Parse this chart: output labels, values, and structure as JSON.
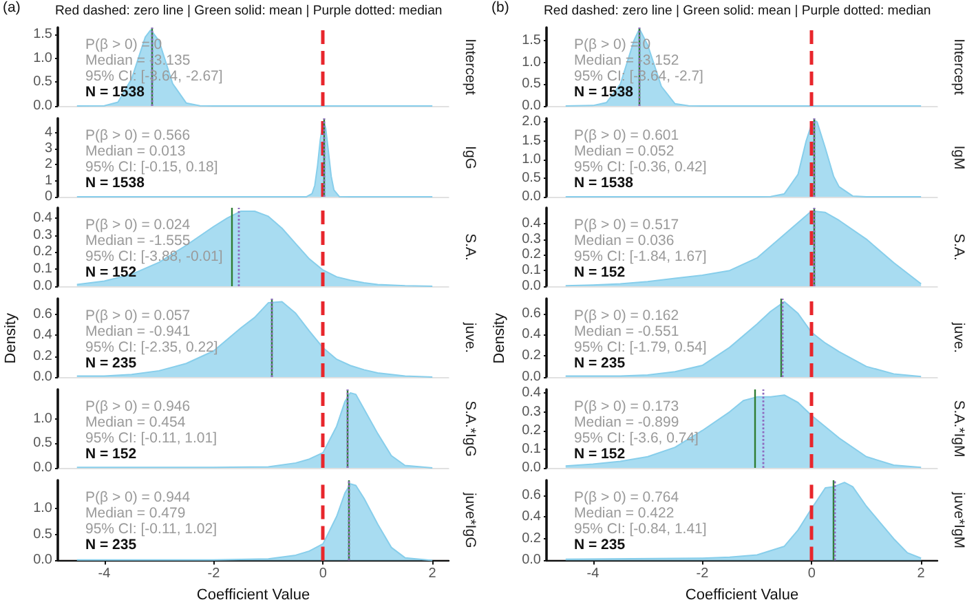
{
  "chart_data": [
    {
      "type": "area",
      "title": "Red dashed: zero line | Green solid: mean | Purple dotted: median",
      "subtitle": "(a)",
      "y2label": "Intercept",
      "annotations": [
        "P(β > 0) = 0",
        "Median = -3.135",
        "95% CI: [-3.64, -2.67]",
        "N = 1538"
      ],
      "x": [
        -4.5,
        -4,
        -3.75,
        -3.5,
        -3.25,
        -3.15,
        -3,
        -2.75,
        -2.5,
        -2.25,
        -2,
        2
      ],
      "series": [
        {
          "color": "#87ceeb",
          "values": [
            0,
            0.004,
            0.08,
            0.57,
            1.45,
            1.6,
            1.37,
            0.47,
            0.06,
            0.005,
            0,
            0
          ]
        }
      ],
      "xlim": [
        -4.85,
        2.3
      ],
      "xticks": [
        -4,
        -2,
        0,
        2
      ],
      "ylim": [
        0,
        1.65
      ],
      "yticks": [
        {
          "value": 0,
          "label": "0.0"
        },
        {
          "value": 0.5,
          "label": "0.5"
        },
        {
          "value": 1,
          "label": "1.0"
        },
        {
          "value": 1.5,
          "label": "1.5"
        }
      ],
      "tick_labels": "y",
      "ref_lines": [
        {
          "axis": "x",
          "value": 0,
          "color": "#e8262c",
          "line_style": "dashed"
        },
        {
          "axis": "x",
          "value": -3.14,
          "color": "#2e7d32",
          "line_style": "solid"
        },
        {
          "axis": "x",
          "value": -3.135,
          "color": "#8e6bbf",
          "line_style": "dotted"
        }
      ]
    },
    {
      "type": "area",
      "y2label": "IgG",
      "annotations": [
        "P(β > 0) = 0.566",
        "Median = 0.013",
        "95% CI: [-0.15, 0.18]",
        "N = 1538"
      ],
      "x": [
        -4.5,
        -0.5,
        -0.3,
        -0.2,
        -0.15,
        -0.1,
        -0.05,
        0,
        0.013,
        0.05,
        0.1,
        0.15,
        0.2,
        0.3,
        0.5,
        2
      ],
      "series": [
        {
          "color": "#87ceeb",
          "values": [
            0,
            0,
            0.005,
            0.2,
            0.71,
            1.94,
            3.55,
            4.65,
            4.7,
            4.26,
            2.79,
            1.28,
            0.42,
            0.01,
            0,
            0
          ]
        }
      ],
      "xlim": [
        -4.85,
        2.3
      ],
      "xticks": [
        -4,
        -2,
        0,
        2
      ],
      "ylim": [
        0,
        4.9
      ],
      "yticks": [
        0,
        1,
        2,
        3,
        4
      ],
      "tick_labels": "y",
      "ref_lines": [
        {
          "axis": "x",
          "value": 0,
          "color": "#e8262c",
          "line_style": "dashed"
        },
        {
          "axis": "x",
          "value": 0.01,
          "color": "#2e7d32",
          "line_style": "solid"
        },
        {
          "axis": "x",
          "value": 0.013,
          "color": "#8e6bbf",
          "line_style": "dotted"
        }
      ]
    },
    {
      "type": "area",
      "y2label": "S.A.",
      "annotations": [
        "P(β > 0) = 0.024",
        "Median = -1.555",
        "95% CI: [-3.88, -0.01]",
        "N = 152"
      ],
      "x": [
        -4.5,
        -4,
        -3.5,
        -3,
        -2.5,
        -2,
        -1.75,
        -1.5,
        -1.25,
        -1,
        -0.75,
        -0.5,
        -0.25,
        0,
        0.25,
        0.5,
        0.75,
        1,
        1.5,
        2
      ],
      "series": [
        {
          "color": "#87ceeb",
          "values": [
            0.01,
            0.03,
            0.07,
            0.14,
            0.24,
            0.35,
            0.4,
            0.44,
            0.44,
            0.41,
            0.34,
            0.25,
            0.16,
            0.095,
            0.055,
            0.035,
            0.02,
            0.01,
            0.003,
            0
          ]
        }
      ],
      "xlim": [
        -4.85,
        2.3
      ],
      "xticks": [
        -4,
        -2,
        0,
        2
      ],
      "ylim": [
        0,
        0.46
      ],
      "yticks": [
        {
          "value": 0,
          "label": "0.0"
        },
        {
          "value": 0.1,
          "label": "0.1"
        },
        {
          "value": 0.2,
          "label": "0.2"
        },
        {
          "value": 0.3,
          "label": "0.3"
        },
        {
          "value": 0.4,
          "label": "0.4"
        }
      ],
      "tick_labels": "y",
      "ref_lines": [
        {
          "axis": "x",
          "value": 0,
          "color": "#e8262c",
          "line_style": "dashed"
        },
        {
          "axis": "x",
          "value": -1.66,
          "color": "#2e7d32",
          "line_style": "solid"
        },
        {
          "axis": "x",
          "value": -1.555,
          "color": "#8e6bbf",
          "line_style": "dotted"
        }
      ]
    },
    {
      "type": "area",
      "ylabel": "Density",
      "y2label": "juve.",
      "annotations": [
        "P(β > 0) = 0.057",
        "Median = -0.941",
        "95% CI: [-2.35, 0.22]",
        "N = 235"
      ],
      "x": [
        -4.5,
        -4,
        -3.5,
        -3,
        -2.5,
        -2,
        -1.5,
        -1.25,
        -1,
        -0.75,
        -0.5,
        -0.25,
        0,
        0.25,
        0.5,
        0.75,
        1,
        1.5,
        2
      ],
      "series": [
        {
          "color": "#87ceeb",
          "values": [
            0.01,
            0.01,
            0.025,
            0.06,
            0.13,
            0.25,
            0.47,
            0.57,
            0.71,
            0.72,
            0.61,
            0.44,
            0.28,
            0.17,
            0.11,
            0.07,
            0.04,
            0.01,
            0
          ]
        }
      ],
      "xlim": [
        -4.85,
        2.3
      ],
      "xticks": [
        -4,
        -2,
        0,
        2
      ],
      "ylim": [
        0,
        0.75
      ],
      "yticks": [
        {
          "value": 0,
          "label": "0.0"
        },
        {
          "value": 0.2,
          "label": "0.2"
        },
        {
          "value": 0.4,
          "label": "0.4"
        },
        {
          "value": 0.6,
          "label": "0.6"
        }
      ],
      "tick_labels": "y",
      "ref_lines": [
        {
          "axis": "x",
          "value": 0,
          "color": "#e8262c",
          "line_style": "dashed"
        },
        {
          "axis": "x",
          "value": -0.95,
          "color": "#2e7d32",
          "line_style": "solid"
        },
        {
          "axis": "x",
          "value": -0.941,
          "color": "#8e6bbf",
          "line_style": "dotted"
        }
      ]
    },
    {
      "type": "area",
      "y2label": "S.A.*IgG",
      "annotations": [
        "P(β > 0) = 0.946",
        "Median = 0.454",
        "95% CI: [-0.11, 1.01]",
        "N = 152"
      ],
      "x": [
        -4.5,
        -2,
        -1,
        -0.5,
        -0.25,
        0,
        0.25,
        0.4,
        0.5,
        0.6,
        0.75,
        1,
        1.25,
        1.5,
        2
      ],
      "series": [
        {
          "color": "#87ceeb",
          "values": [
            0.01,
            0.01,
            0.02,
            0.1,
            0.18,
            0.31,
            0.85,
            1.35,
            1.53,
            1.5,
            1.2,
            0.7,
            0.25,
            0.05,
            0
          ]
        }
      ],
      "xlim": [
        -4.85,
        2.3
      ],
      "xticks": [
        -4,
        -2,
        0,
        2
      ],
      "ylim": [
        0,
        1.6
      ],
      "yticks": [
        {
          "value": 0,
          "label": "0.0"
        },
        {
          "value": 0.5,
          "label": "0.5"
        },
        {
          "value": 1,
          "label": "1.0"
        }
      ],
      "tick_labels": "y",
      "ref_lines": [
        {
          "axis": "x",
          "value": 0,
          "color": "#e8262c",
          "line_style": "dashed"
        },
        {
          "axis": "x",
          "value": 0.45,
          "color": "#2e7d32",
          "line_style": "solid"
        },
        {
          "axis": "x",
          "value": 0.454,
          "color": "#8e6bbf",
          "line_style": "dotted"
        }
      ]
    },
    {
      "type": "area",
      "xlabel": "Coefficient Value",
      "y2label": "juve*IgG",
      "annotations": [
        "P(β > 0) = 0.944",
        "Median = 0.479",
        "95% CI: [-0.11, 1.02]",
        "N = 235"
      ],
      "x": [
        -4.5,
        -2,
        -1,
        -0.5,
        -0.25,
        0,
        0.25,
        0.4,
        0.5,
        0.6,
        0.75,
        1,
        1.25,
        1.5,
        2
      ],
      "series": [
        {
          "color": "#87ceeb",
          "values": [
            0.01,
            0.01,
            0.03,
            0.1,
            0.18,
            0.32,
            0.85,
            1.3,
            1.48,
            1.45,
            1.2,
            0.7,
            0.25,
            0.05,
            0
          ]
        }
      ],
      "xlim": [
        -4.85,
        2.3
      ],
      "xticks": [
        -4,
        -2,
        0,
        2
      ],
      "ylim": [
        0,
        1.55
      ],
      "yticks": [
        {
          "value": 0,
          "label": "0.0"
        },
        {
          "value": 0.5,
          "label": "0.5"
        },
        {
          "value": 1,
          "label": "1.0"
        }
      ],
      "ref_lines": [
        {
          "axis": "x",
          "value": 0,
          "color": "#e8262c",
          "line_style": "dashed"
        },
        {
          "axis": "x",
          "value": 0.48,
          "color": "#2e7d32",
          "line_style": "solid"
        },
        {
          "axis": "x",
          "value": 0.479,
          "color": "#8e6bbf",
          "line_style": "dotted"
        }
      ]
    },
    {
      "type": "area",
      "title": "Red dashed: zero line | Green solid: mean | Purple dotted: median",
      "subtitle": "(b)",
      "y2label": "Intercept",
      "annotations": [
        "P(β > 0) = 0",
        "Median = -3.152",
        "95% CI: [-3.64, -2.7]",
        "N = 1538"
      ],
      "x": [
        -4.5,
        -4,
        -3.75,
        -3.5,
        -3.25,
        -3.15,
        -3,
        -2.75,
        -2.5,
        -2.25,
        -2,
        2
      ],
      "series": [
        {
          "color": "#87ceeb",
          "values": [
            0,
            0.01,
            0.08,
            0.5,
            1.5,
            1.77,
            1.4,
            0.45,
            0.05,
            0.005,
            0,
            0
          ]
        }
      ],
      "xlim": [
        -4.85,
        2.3
      ],
      "xticks": [
        -4,
        -2,
        0,
        2
      ],
      "ylim": [
        0,
        1.8
      ],
      "yticks": [
        {
          "value": 0,
          "label": "0.0"
        },
        {
          "value": 0.5,
          "label": "0.5"
        },
        {
          "value": 1,
          "label": "1.0"
        },
        {
          "value": 1.5,
          "label": "1.5"
        }
      ],
      "tick_labels": "y",
      "ref_lines": [
        {
          "axis": "x",
          "value": 0,
          "color": "#e8262c",
          "line_style": "dashed"
        },
        {
          "axis": "x",
          "value": -3.15,
          "color": "#2e7d32",
          "line_style": "solid"
        },
        {
          "axis": "x",
          "value": -3.152,
          "color": "#8e6bbf",
          "line_style": "dotted"
        }
      ]
    },
    {
      "type": "area",
      "y2label": "IgM",
      "annotations": [
        "P(β > 0) = 0.601",
        "Median = 0.052",
        "95% CI: [-0.36, 0.42]",
        "N = 1538"
      ],
      "x": [
        -4.5,
        -1,
        -0.75,
        -0.5,
        -0.25,
        -0.1,
        0,
        0.05,
        0.1,
        0.25,
        0.4,
        0.5,
        0.75,
        1,
        2
      ],
      "series": [
        {
          "color": "#87ceeb",
          "values": [
            0,
            0,
            0.005,
            0.08,
            0.6,
            1.5,
            1.95,
            2.05,
            2,
            1.3,
            0.55,
            0.27,
            0.02,
            0,
            0
          ]
        }
      ],
      "xlim": [
        -4.85,
        2.3
      ],
      "xticks": [
        -4,
        -2,
        0,
        2
      ],
      "ylim": [
        0,
        2.1
      ],
      "yticks": [
        {
          "value": 0,
          "label": "0.0"
        },
        {
          "value": 0.5,
          "label": "0.5"
        },
        {
          "value": 1,
          "label": "1.0"
        },
        {
          "value": 1.5,
          "label": "1.5"
        },
        {
          "value": 2,
          "label": "2.0"
        }
      ],
      "tick_labels": "y",
      "ref_lines": [
        {
          "axis": "x",
          "value": 0,
          "color": "#e8262c",
          "line_style": "dashed"
        },
        {
          "axis": "x",
          "value": 0.05,
          "color": "#2e7d32",
          "line_style": "solid"
        },
        {
          "axis": "x",
          "value": 0.052,
          "color": "#8e6bbf",
          "line_style": "dotted"
        }
      ]
    },
    {
      "type": "area",
      "y2label": "S.A.",
      "annotations": [
        "P(β > 0) = 0.517",
        "Median = 0.036",
        "95% CI: [-1.84, 1.67]",
        "N = 152"
      ],
      "x": [
        -4.5,
        -4,
        -3.5,
        -3,
        -2.5,
        -2,
        -1.5,
        -1,
        -0.5,
        0,
        0.25,
        0.5,
        1,
        1.5,
        2
      ],
      "series": [
        {
          "color": "#87ceeb",
          "values": [
            0.003,
            0.008,
            0.015,
            0.03,
            0.05,
            0.07,
            0.1,
            0.18,
            0.33,
            0.48,
            0.47,
            0.42,
            0.3,
            0.15,
            0.015
          ]
        }
      ],
      "xlim": [
        -4.85,
        2.3
      ],
      "xticks": [
        -4,
        -2,
        0,
        2
      ],
      "ylim": [
        0,
        0.5
      ],
      "yticks": [
        {
          "value": 0,
          "label": "0.0"
        },
        {
          "value": 0.1,
          "label": "0.1"
        },
        {
          "value": 0.2,
          "label": "0.2"
        },
        {
          "value": 0.3,
          "label": "0.3"
        },
        {
          "value": 0.4,
          "label": "0.4"
        }
      ],
      "tick_labels": "y",
      "ref_lines": [
        {
          "axis": "x",
          "value": 0,
          "color": "#e8262c",
          "line_style": "dashed"
        },
        {
          "axis": "x",
          "value": 0.03,
          "color": "#2e7d32",
          "line_style": "solid"
        },
        {
          "axis": "x",
          "value": 0.036,
          "color": "#8e6bbf",
          "line_style": "dotted"
        }
      ]
    },
    {
      "type": "area",
      "ylabel": "Density",
      "y2label": "juve.",
      "annotations": [
        "P(β > 0) = 0.162",
        "Median = -0.551",
        "95% CI: [-1.79, 0.54]",
        "N = 235"
      ],
      "x": [
        -4.5,
        -4,
        -3.5,
        -3,
        -2.5,
        -2,
        -1.5,
        -1,
        -0.75,
        -0.5,
        -0.25,
        0,
        0.25,
        0.5,
        1,
        1.5,
        2
      ],
      "series": [
        {
          "color": "#87ceeb",
          "values": [
            0.01,
            0.01,
            0.01,
            0.02,
            0.05,
            0.11,
            0.28,
            0.5,
            0.62,
            0.71,
            0.6,
            0.42,
            0.32,
            0.24,
            0.1,
            0.03,
            0.005
          ]
        }
      ],
      "xlim": [
        -4.85,
        2.3
      ],
      "xticks": [
        -4,
        -2,
        0,
        2
      ],
      "ylim": [
        0,
        0.74
      ],
      "yticks": [
        {
          "value": 0,
          "label": "0.0"
        },
        {
          "value": 0.2,
          "label": "0.2"
        },
        {
          "value": 0.4,
          "label": "0.4"
        },
        {
          "value": 0.6,
          "label": "0.6"
        }
      ],
      "tick_labels": "y",
      "ref_lines": [
        {
          "axis": "x",
          "value": 0,
          "color": "#e8262c",
          "line_style": "dashed"
        },
        {
          "axis": "x",
          "value": -0.57,
          "color": "#2e7d32",
          "line_style": "solid"
        },
        {
          "axis": "x",
          "value": -0.551,
          "color": "#8e6bbf",
          "line_style": "dotted"
        }
      ]
    },
    {
      "type": "area",
      "y2label": "S.A.*IgM",
      "annotations": [
        "P(β > 0) = 0.173",
        "Median = -0.899",
        "95% CI: [-3.6, 0.74]",
        "N = 152"
      ],
      "x": [
        -4.5,
        -4,
        -3.5,
        -3,
        -2.5,
        -2,
        -1.5,
        -1.25,
        -1,
        -0.75,
        -0.5,
        -0.25,
        0,
        0.5,
        1,
        1.5,
        2
      ],
      "series": [
        {
          "color": "#87ceeb",
          "values": [
            0.01,
            0.02,
            0.035,
            0.06,
            0.11,
            0.2,
            0.3,
            0.36,
            0.38,
            0.38,
            0.39,
            0.35,
            0.28,
            0.16,
            0.06,
            0.015,
            0.003
          ]
        }
      ],
      "xlim": [
        -4.85,
        2.3
      ],
      "xticks": [
        -4,
        -2,
        0,
        2
      ],
      "ylim": [
        0,
        0.42
      ],
      "yticks": [
        {
          "value": 0,
          "label": "0.0"
        },
        {
          "value": 0.1,
          "label": "0.1"
        },
        {
          "value": 0.2,
          "label": "0.2"
        },
        {
          "value": 0.3,
          "label": "0.3"
        },
        {
          "value": 0.4,
          "label": "0.4"
        }
      ],
      "tick_labels": "y",
      "ref_lines": [
        {
          "axis": "x",
          "value": 0,
          "color": "#e8262c",
          "line_style": "dashed"
        },
        {
          "axis": "x",
          "value": -1.03,
          "color": "#2e7d32",
          "line_style": "solid"
        },
        {
          "axis": "x",
          "value": -0.899,
          "color": "#8e6bbf",
          "line_style": "dotted"
        }
      ]
    },
    {
      "type": "area",
      "xlabel": "Coefficient Value",
      "y2label": "juve*IgM",
      "annotations": [
        "P(β > 0) = 0.764",
        "Median = 0.422",
        "95% CI: [-0.84, 1.41]",
        "N = 235"
      ],
      "x": [
        -4.5,
        -2,
        -1.5,
        -1,
        -0.5,
        -0.25,
        0,
        0.25,
        0.4,
        0.6,
        0.75,
        1,
        1.25,
        1.5,
        1.75,
        2
      ],
      "series": [
        {
          "color": "#87ceeb",
          "values": [
            0.01,
            0.02,
            0.03,
            0.05,
            0.13,
            0.28,
            0.48,
            0.67,
            0.68,
            0.72,
            0.68,
            0.5,
            0.35,
            0.2,
            0.07,
            0.02
          ]
        }
      ],
      "xlim": [
        -4.85,
        2.3
      ],
      "xticks": [
        -4,
        -2,
        0,
        2
      ],
      "ylim": [
        0,
        0.74
      ],
      "yticks": [
        {
          "value": 0,
          "label": "0.0"
        },
        {
          "value": 0.2,
          "label": "0.2"
        },
        {
          "value": 0.4,
          "label": "0.4"
        },
        {
          "value": 0.6,
          "label": "0.6"
        }
      ],
      "ref_lines": [
        {
          "axis": "x",
          "value": 0,
          "color": "#e8262c",
          "line_style": "dashed"
        },
        {
          "axis": "x",
          "value": 0.4,
          "color": "#2e7d32",
          "line_style": "solid"
        },
        {
          "axis": "x",
          "value": 0.422,
          "color": "#8e6bbf",
          "line_style": "dotted"
        }
      ]
    }
  ]
}
